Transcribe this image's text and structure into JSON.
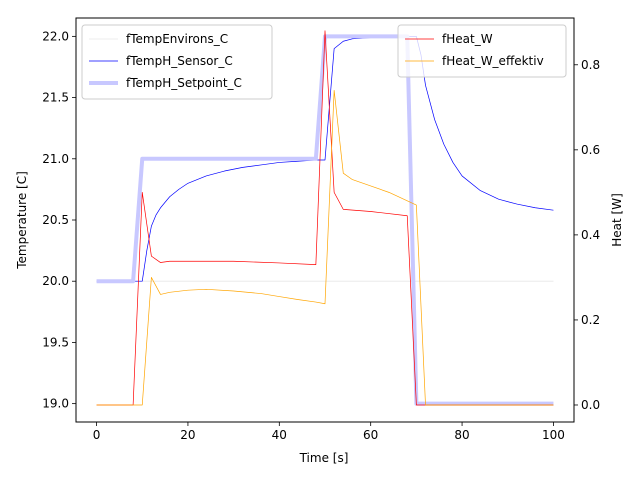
{
  "chart_data": {
    "type": "line",
    "xlabel": "Time [s]",
    "ylabel_left": "Temperature [C]",
    "ylabel_right": "Heat [W]",
    "xlim": [
      -4.5,
      104.5
    ],
    "ylim_left": [
      18.85,
      22.15
    ],
    "ylim_right": [
      -0.04,
      0.91
    ],
    "x_ticks": [
      0,
      20,
      40,
      60,
      80,
      100
    ],
    "y_ticks_left": [
      19.0,
      19.5,
      20.0,
      20.5,
      21.0,
      21.5,
      22.0
    ],
    "y_ticks_right": [
      0.0,
      0.2,
      0.4,
      0.6,
      0.8
    ],
    "grid": false,
    "legend_left_position": "upper-left",
    "legend_right_position": "upper-right",
    "legend_left": [
      {
        "name": "fTempEnvirons_C",
        "color": "#e8e8e8"
      },
      {
        "name": "fTempH_Sensor_C",
        "color": "#0000ff"
      },
      {
        "name": "fTempH_Setpoint_C",
        "color": "#c8c8ff"
      }
    ],
    "legend_right": [
      {
        "name": "fHeat_W",
        "color": "#ff0000"
      },
      {
        "name": "fHeat_W_effektiv",
        "color": "#ffa500"
      }
    ],
    "series_left": [
      {
        "name": "fTempEnvirons_C",
        "color": "#e8e8e8",
        "x": [
          0,
          100
        ],
        "y": [
          20.0,
          20.0
        ]
      },
      {
        "name": "fTempH_Sensor_C",
        "color": "#0000ff",
        "x": [
          0,
          10,
          11,
          12,
          13,
          14,
          16,
          18,
          20,
          24,
          28,
          32,
          36,
          40,
          44,
          48,
          50,
          52,
          54,
          56,
          60,
          64,
          66,
          68,
          70,
          71,
          72,
          74,
          76,
          78,
          80,
          84,
          88,
          92,
          96,
          100
        ],
        "y": [
          20.0,
          20.0,
          20.25,
          20.45,
          20.54,
          20.6,
          20.69,
          20.75,
          20.8,
          20.86,
          20.9,
          20.93,
          20.95,
          20.97,
          20.98,
          20.99,
          20.99,
          21.9,
          21.96,
          21.98,
          21.99,
          22.0,
          22.0,
          22.0,
          22.0,
          21.85,
          21.6,
          21.32,
          21.12,
          20.97,
          20.86,
          20.74,
          20.67,
          20.63,
          20.6,
          20.58
        ]
      },
      {
        "name": "fTempH_Setpoint_C",
        "color": "#c8c8ff",
        "x": [
          0,
          8,
          10,
          48,
          50,
          68,
          70,
          100
        ],
        "y": [
          20.0,
          20.0,
          21.0,
          21.0,
          22.0,
          22.0,
          19.0,
          19.0
        ]
      }
    ],
    "series_right": [
      {
        "name": "fHeat_W",
        "color": "#ff0000",
        "x": [
          0,
          8,
          10,
          12,
          14,
          16,
          20,
          30,
          40,
          48,
          50,
          52,
          54,
          60,
          68,
          70,
          100
        ],
        "y": [
          0.0,
          0.0,
          0.5,
          0.35,
          0.335,
          0.338,
          0.338,
          0.338,
          0.334,
          0.33,
          0.88,
          0.5,
          0.46,
          0.455,
          0.445,
          0.0,
          0.0
        ]
      },
      {
        "name": "fHeat_W_effektiv",
        "color": "#ffa500",
        "x": [
          0,
          10,
          12,
          14,
          16,
          20,
          24,
          30,
          36,
          40,
          44,
          48,
          50,
          52,
          54,
          56,
          60,
          64,
          68,
          70,
          72,
          100
        ],
        "y": [
          0.0,
          0.0,
          0.3,
          0.26,
          0.265,
          0.27,
          0.272,
          0.268,
          0.262,
          0.255,
          0.248,
          0.242,
          0.238,
          0.74,
          0.545,
          0.53,
          0.515,
          0.5,
          0.48,
          0.47,
          0.0,
          0.0
        ]
      }
    ]
  }
}
